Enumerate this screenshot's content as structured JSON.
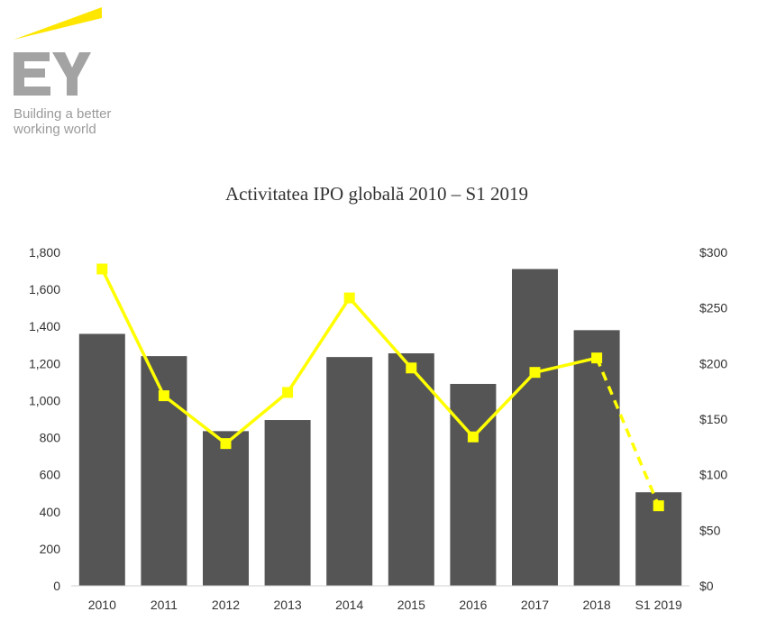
{
  "logo": {
    "brand": "EY",
    "tagline_line1": "Building a better",
    "tagline_line2": "working world",
    "colors": {
      "beam": "#ffe600",
      "text": "#999999"
    }
  },
  "chart_data": {
    "type": "bar",
    "title": "Activitatea IPO globală 2010 – S1 2019",
    "categories": [
      "2010",
      "2011",
      "2012",
      "2013",
      "2014",
      "2015",
      "2016",
      "2017",
      "2018",
      "S1 2019"
    ],
    "series": [
      {
        "type": "bar",
        "axis": "left",
        "values": [
          1360,
          1240,
          835,
          895,
          1235,
          1255,
          1090,
          1710,
          1380,
          505
        ],
        "color": "#555555"
      },
      {
        "type": "line",
        "axis": "right",
        "values": [
          285,
          171,
          128,
          174,
          259,
          196,
          134,
          192,
          205,
          72
        ],
        "color": "#ffff00",
        "dashed_last_segment": true
      }
    ],
    "y_left": {
      "min": 0,
      "max": 1800,
      "ticks": [
        "0",
        "200",
        "400",
        "600",
        "800",
        "1,000",
        "1,200",
        "1,400",
        "1,600",
        "1,800"
      ]
    },
    "y_right": {
      "min": 0,
      "max": 300,
      "ticks": [
        "$0",
        "$50",
        "$100",
        "$150",
        "$200",
        "$250",
        "$300"
      ]
    },
    "grid": false,
    "legend": "none"
  }
}
